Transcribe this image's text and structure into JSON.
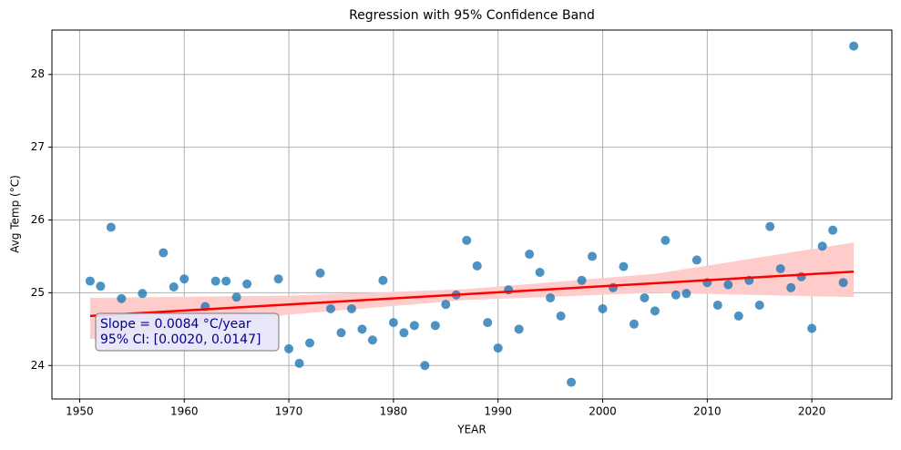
{
  "chart_data": {
    "type": "scatter",
    "title": "Regression with 95% Confidence Band",
    "x_label": "YEAR",
    "y_label": "Avg Temp (°C)",
    "x": [
      1951,
      1952,
      1953,
      1954,
      1956,
      1958,
      1959,
      1960,
      1962,
      1963,
      1964,
      1965,
      1966,
      1969,
      1970,
      1971,
      1972,
      1973,
      1974,
      1975,
      1976,
      1977,
      1978,
      1979,
      1980,
      1981,
      1982,
      1983,
      1984,
      1985,
      1986,
      1987,
      1988,
      1989,
      1990,
      1991,
      1992,
      1993,
      1994,
      1995,
      1996,
      1997,
      1998,
      1999,
      2000,
      2001,
      2002,
      2003,
      2004,
      2005,
      2006,
      2007,
      2008,
      2009,
      2010,
      2011,
      2012,
      2013,
      2014,
      2015,
      2016,
      2017,
      2018,
      2019,
      2020,
      2021,
      2022,
      2023,
      2024
    ],
    "y": [
      25.16,
      25.09,
      25.9,
      24.92,
      24.99,
      25.55,
      25.08,
      25.19,
      24.81,
      25.16,
      25.16,
      24.94,
      25.12,
      25.19,
      24.23,
      24.03,
      24.31,
      25.27,
      24.78,
      24.45,
      24.78,
      24.5,
      24.35,
      25.17,
      24.59,
      24.45,
      24.55,
      24.0,
      24.55,
      24.84,
      24.97,
      25.72,
      25.37,
      24.59,
      24.24,
      25.04,
      24.5,
      25.53,
      25.28,
      24.93,
      24.68,
      23.77,
      25.17,
      25.5,
      24.78,
      25.07,
      25.36,
      24.57,
      24.93,
      24.75,
      25.72,
      24.97,
      24.99,
      25.45,
      25.14,
      24.83,
      25.11,
      24.68,
      25.17,
      24.83,
      25.91,
      25.33,
      25.07,
      25.22,
      24.51,
      25.64,
      25.86,
      25.14,
      28.39
    ],
    "color": "#1f77b4",
    "regression": {
      "x": [
        1951,
        2024
      ],
      "y": [
        24.68,
        25.29
      ],
      "color": "#ff0000"
    },
    "band": {
      "x": [
        1951,
        1970,
        1987,
        2005,
        2024
      ],
      "upper": [
        24.93,
        24.96,
        25.05,
        25.26,
        25.69
      ],
      "lower": [
        24.36,
        24.7,
        24.9,
        25.0,
        24.94
      ],
      "color": "#ffcccc"
    },
    "annotations": [
      "Slope = 0.0084 °C/year",
      "95% CI: [0.0020, 0.0147]"
    ],
    "xlim": [
      1947.35,
      2027.65
    ],
    "ylim": [
      23.54,
      28.61
    ],
    "xticks": [
      1950,
      1960,
      1970,
      1980,
      1990,
      2000,
      2010,
      2020
    ],
    "yticks": [
      24,
      25,
      26,
      27,
      28
    ],
    "grid": true
  }
}
